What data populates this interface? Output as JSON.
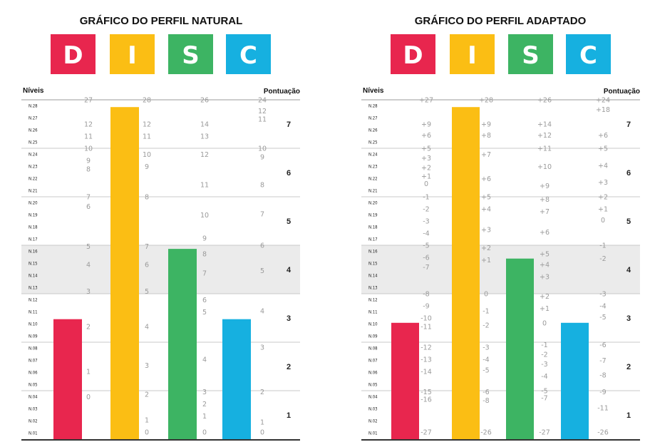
{
  "chart_data": [
    {
      "type": "bar",
      "title": "GRÁFICO DO PERFIL NATURAL",
      "logo_letters": [
        "D",
        "I",
        "S",
        "C"
      ],
      "levels_label": "Níveis",
      "score_label": "Pontuação",
      "levels": [
        "N.28",
        "N.27",
        "N.26",
        "N.25",
        "N.24",
        "N.23",
        "N.22",
        "N.21",
        "N.20",
        "N.19",
        "N.18",
        "N.17",
        "N.16",
        "N.15",
        "N.14",
        "N.13",
        "N.12",
        "N.11",
        "N.10",
        "N.09",
        "N.08",
        "N.07",
        "N.06",
        "N.05",
        "N.04",
        "N.03",
        "N.02",
        "N.01"
      ],
      "scores": [
        "7",
        "6",
        "5",
        "4",
        "3",
        "2",
        "1"
      ],
      "highlighted_score": "4",
      "categories": [
        "D",
        "I",
        "S",
        "C"
      ],
      "values_level": [
        9.9,
        27.4,
        15.7,
        9.9
      ],
      "colors": [
        "#e8264e",
        "#fbbe14",
        "#3db463",
        "#16b0e0"
      ],
      "scale_labels": [
        [
          {
            "t": "27",
            "l": 28
          },
          {
            "t": "12",
            "l": 26
          },
          {
            "t": "11",
            "l": 25
          },
          {
            "t": "10",
            "l": 24
          },
          {
            "t": "9",
            "l": 23
          },
          {
            "t": "8",
            "l": 22.3
          },
          {
            "t": "7",
            "l": 20
          },
          {
            "t": "6",
            "l": 19.2
          },
          {
            "t": "5",
            "l": 15.9
          },
          {
            "t": "4",
            "l": 14.4
          },
          {
            "t": "3",
            "l": 12.2
          },
          {
            "t": "2",
            "l": 9.3
          },
          {
            "t": "1",
            "l": 5.6
          },
          {
            "t": "0",
            "l": 3.5
          }
        ],
        [
          {
            "t": "28",
            "l": 28
          },
          {
            "t": "12",
            "l": 26
          },
          {
            "t": "11",
            "l": 25
          },
          {
            "t": "10",
            "l": 23.5
          },
          {
            "t": "9",
            "l": 22.5
          },
          {
            "t": "8",
            "l": 20
          },
          {
            "t": "7",
            "l": 15.9
          },
          {
            "t": "6",
            "l": 14.4
          },
          {
            "t": "5",
            "l": 12.2
          },
          {
            "t": "4",
            "l": 9.3
          },
          {
            "t": "3",
            "l": 6.1
          },
          {
            "t": "2",
            "l": 3.7
          },
          {
            "t": "1",
            "l": 1.6
          },
          {
            "t": "0",
            "l": 0.6
          }
        ],
        [
          {
            "t": "26",
            "l": 28
          },
          {
            "t": "14",
            "l": 26
          },
          {
            "t": "13",
            "l": 25
          },
          {
            "t": "12",
            "l": 23.5
          },
          {
            "t": "11",
            "l": 21
          },
          {
            "t": "10",
            "l": 18.5
          },
          {
            "t": "9",
            "l": 16.6
          },
          {
            "t": "8",
            "l": 15.3
          },
          {
            "t": "7",
            "l": 13.7
          },
          {
            "t": "6",
            "l": 11.5
          },
          {
            "t": "5",
            "l": 10.5
          },
          {
            "t": "4",
            "l": 6.6
          },
          {
            "t": "3",
            "l": 3.9
          },
          {
            "t": "2",
            "l": 2.9
          },
          {
            "t": "1",
            "l": 1.9
          },
          {
            "t": "0",
            "l": 0.6
          }
        ],
        [
          {
            "t": "24",
            "l": 28
          },
          {
            "t": "12",
            "l": 27.1
          },
          {
            "t": "11",
            "l": 26.4
          },
          {
            "t": "10",
            "l": 24
          },
          {
            "t": "9",
            "l": 23.3
          },
          {
            "t": "8",
            "l": 21
          },
          {
            "t": "7",
            "l": 18.6
          },
          {
            "t": "6",
            "l": 16
          },
          {
            "t": "5",
            "l": 13.9
          },
          {
            "t": "4",
            "l": 10.6
          },
          {
            "t": "3",
            "l": 7.6
          },
          {
            "t": "2",
            "l": 3.9
          },
          {
            "t": "1",
            "l": 1.4
          },
          {
            "t": "0",
            "l": 0.6
          }
        ]
      ]
    },
    {
      "type": "bar",
      "title": "GRÁFICO DO PERFIL ADAPTADO",
      "logo_letters": [
        "D",
        "I",
        "S",
        "C"
      ],
      "levels_label": "Níveis",
      "score_label": "Pontuação",
      "levels": [
        "N.28",
        "N.27",
        "N.26",
        "N.25",
        "N.24",
        "N.23",
        "N.22",
        "N.21",
        "N.20",
        "N.19",
        "N.18",
        "N.17",
        "N.16",
        "N.15",
        "N.14",
        "N.13",
        "N.12",
        "N.11",
        "N.10",
        "N.09",
        "N.08",
        "N.07",
        "N.06",
        "N.05",
        "N.04",
        "N.03",
        "N.02",
        "N.01"
      ],
      "scores": [
        "7",
        "6",
        "5",
        "4",
        "3",
        "2",
        "1"
      ],
      "highlighted_score": "4",
      "categories": [
        "D",
        "I",
        "S",
        "C"
      ],
      "values_level": [
        9.6,
        27.4,
        14.9,
        9.6
      ],
      "colors": [
        "#e8264e",
        "#fbbe14",
        "#3db463",
        "#16b0e0"
      ],
      "scale_labels": [
        [
          {
            "t": "+27",
            "l": 28
          },
          {
            "t": "+9",
            "l": 26
          },
          {
            "t": "+6",
            "l": 25.1
          },
          {
            "t": "+5",
            "l": 24
          },
          {
            "t": "+3",
            "l": 23.2
          },
          {
            "t": "+2",
            "l": 22.4
          },
          {
            "t": "+1",
            "l": 21.7
          },
          {
            "t": "0",
            "l": 21.1
          },
          {
            "t": "-1",
            "l": 20
          },
          {
            "t": "-2",
            "l": 19
          },
          {
            "t": "-3",
            "l": 18
          },
          {
            "t": "-4",
            "l": 17
          },
          {
            "t": "-5",
            "l": 16
          },
          {
            "t": "-6",
            "l": 15
          },
          {
            "t": "-7",
            "l": 14.2
          },
          {
            "t": "-8",
            "l": 12
          },
          {
            "t": "-9",
            "l": 11
          },
          {
            "t": "-10",
            "l": 10
          },
          {
            "t": "-11",
            "l": 9.3
          },
          {
            "t": "-12",
            "l": 7.6
          },
          {
            "t": "-13",
            "l": 6.6
          },
          {
            "t": "-14",
            "l": 5.6
          },
          {
            "t": "-15",
            "l": 3.9
          },
          {
            "t": "-16",
            "l": 3.3
          },
          {
            "t": "-27",
            "l": 0.6
          }
        ],
        [
          {
            "t": "+28",
            "l": 28
          },
          {
            "t": "+9",
            "l": 26
          },
          {
            "t": "+8",
            "l": 25.1
          },
          {
            "t": "+7",
            "l": 23.5
          },
          {
            "t": "+6",
            "l": 21.5
          },
          {
            "t": "+5",
            "l": 20
          },
          {
            "t": "+4",
            "l": 19
          },
          {
            "t": "+3",
            "l": 17.3
          },
          {
            "t": "+2",
            "l": 15.8
          },
          {
            "t": "+1",
            "l": 14.8
          },
          {
            "t": "0",
            "l": 12
          },
          {
            "t": "-1",
            "l": 10.6
          },
          {
            "t": "-2",
            "l": 9.4
          },
          {
            "t": "-3",
            "l": 7.6
          },
          {
            "t": "-4",
            "l": 6.6
          },
          {
            "t": "-5",
            "l": 5.7
          },
          {
            "t": "-6",
            "l": 3.9
          },
          {
            "t": "-8",
            "l": 3.2
          },
          {
            "t": "-26",
            "l": 0.6
          }
        ],
        [
          {
            "t": "+26",
            "l": 28
          },
          {
            "t": "+14",
            "l": 26
          },
          {
            "t": "+12",
            "l": 25.1
          },
          {
            "t": "+11",
            "l": 24
          },
          {
            "t": "+10",
            "l": 22.5
          },
          {
            "t": "+9",
            "l": 20.9
          },
          {
            "t": "+8",
            "l": 19.8
          },
          {
            "t": "+7",
            "l": 18.8
          },
          {
            "t": "+6",
            "l": 17.1
          },
          {
            "t": "+5",
            "l": 15.3
          },
          {
            "t": "+4",
            "l": 14.4
          },
          {
            "t": "+3",
            "l": 13.4
          },
          {
            "t": "+2",
            "l": 11.8
          },
          {
            "t": "+1",
            "l": 10.8
          },
          {
            "t": "0",
            "l": 9.6
          },
          {
            "t": "-1",
            "l": 7.8
          },
          {
            "t": "-2",
            "l": 7
          },
          {
            "t": "-3",
            "l": 6.2
          },
          {
            "t": "-4",
            "l": 5.2
          },
          {
            "t": "-5",
            "l": 4
          },
          {
            "t": "-7",
            "l": 3.4
          },
          {
            "t": "-27",
            "l": 0.6
          }
        ],
        [
          {
            "t": "+24",
            "l": 28
          },
          {
            "t": "+18",
            "l": 27.2
          },
          {
            "t": "+6",
            "l": 25.1
          },
          {
            "t": "+5",
            "l": 24
          },
          {
            "t": "+4",
            "l": 22.6
          },
          {
            "t": "+3",
            "l": 21.2
          },
          {
            "t": "+2",
            "l": 20
          },
          {
            "t": "+1",
            "l": 19
          },
          {
            "t": "0",
            "l": 18.1
          },
          {
            "t": "-1",
            "l": 16
          },
          {
            "t": "-2",
            "l": 14.9
          },
          {
            "t": "-3",
            "l": 12
          },
          {
            "t": "-4",
            "l": 11
          },
          {
            "t": "-5",
            "l": 10.1
          },
          {
            "t": "-6",
            "l": 7.8
          },
          {
            "t": "-7",
            "l": 6.5
          },
          {
            "t": "-8",
            "l": 5.3
          },
          {
            "t": "-9",
            "l": 3.9
          },
          {
            "t": "-11",
            "l": 2.6
          },
          {
            "t": "-26",
            "l": 0.6
          }
        ]
      ]
    }
  ]
}
